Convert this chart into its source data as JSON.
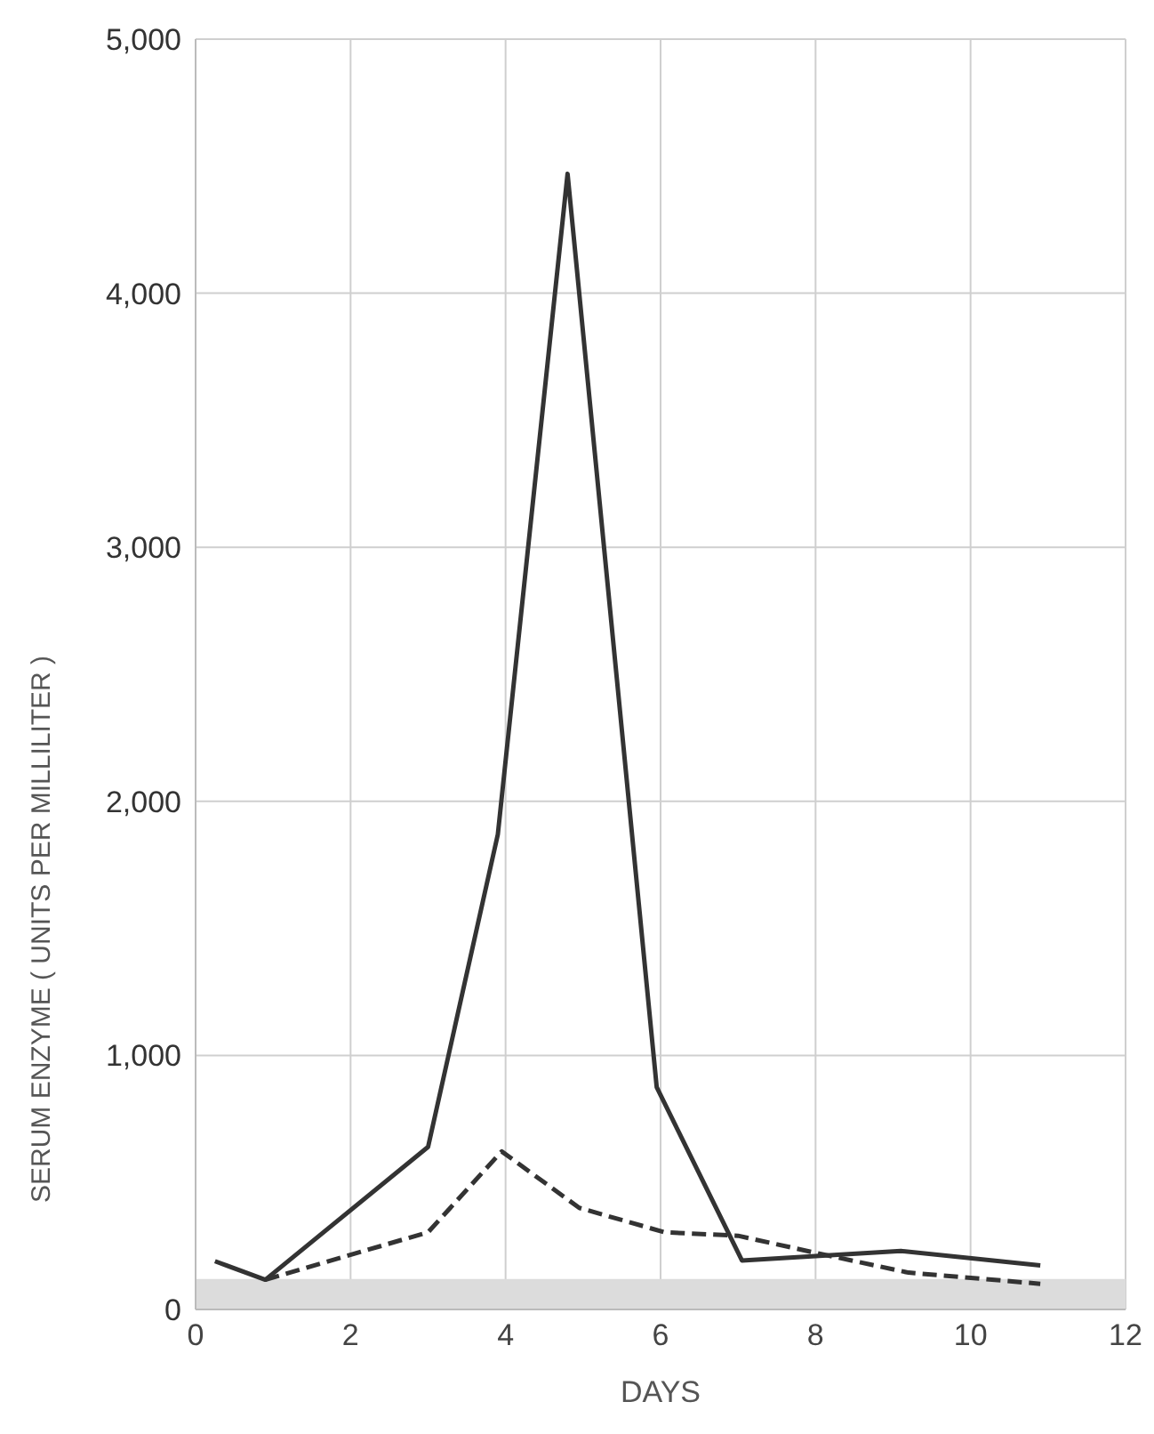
{
  "chart_data": {
    "type": "line",
    "xlabel": "DAYS",
    "ylabel": "SERUM ENZYME ( UNITS PER MILLILITER )",
    "series": [
      {
        "color": "#333333",
        "line_style": "solid",
        "x": [
          0.25,
          0.9,
          3.0,
          3.9,
          4.8,
          5.95,
          7.05,
          8.0,
          9.1,
          10.9
        ],
        "values": [
          190,
          117,
          640,
          1870,
          4470,
          875,
          193,
          210,
          230,
          173
        ]
      },
      {
        "color": "#333333",
        "line_style": "dashed",
        "x": [
          0.9,
          3.0,
          3.95,
          4.95,
          6.05,
          7.0,
          8.0,
          9.2,
          10.9
        ],
        "values": [
          117,
          304,
          622,
          400,
          304,
          290,
          223,
          145,
          101
        ]
      }
    ],
    "xlim": [
      0,
      12
    ],
    "xticks": [
      0,
      2,
      4,
      6,
      8,
      10,
      12
    ],
    "ylim": [
      0,
      5000
    ],
    "yticks": [
      {
        "value": 0,
        "label": "0"
      },
      {
        "value": 1000,
        "label": "1,000"
      },
      {
        "value": 2000,
        "label": "2,000"
      },
      {
        "value": 3000,
        "label": "3,000"
      },
      {
        "value": 4000,
        "label": "4,000"
      },
      {
        "value": 5000,
        "label": "5,000"
      }
    ],
    "bands": [
      {
        "axis": "y",
        "from": 0,
        "to": 120,
        "color": "#dcdcdc"
      }
    ],
    "grid": true,
    "marker": "none"
  }
}
